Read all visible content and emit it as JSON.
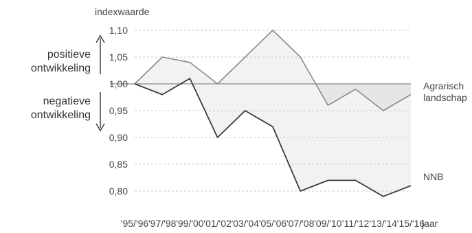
{
  "chart_data": {
    "type": "line",
    "title": "",
    "ylabel": "indexwaarde",
    "xlabel": "jaar",
    "ylim": [
      0.78,
      1.1
    ],
    "yticks": [
      "1,10",
      "1,05",
      "1,00",
      "0,95",
      "0,90",
      "0,85",
      "0,80"
    ],
    "ytick_values": [
      1.1,
      1.05,
      1.0,
      0.95,
      0.9,
      0.85,
      0.8
    ],
    "categories": [
      "'95/'96",
      "'97/'98",
      "'99/'00",
      "'01/'02",
      "'03/'04",
      "'05/'06",
      "'07/'08",
      "'09/'10",
      "'11/'12",
      "'13/'14",
      "'15/'16"
    ],
    "baseline": 1.0,
    "series": [
      {
        "name": "Agrarisch landschap",
        "label_lines": [
          "Agrarisch",
          "landschap"
        ],
        "values": [
          1.0,
          1.05,
          1.04,
          1.0,
          1.05,
          1.1,
          1.05,
          0.96,
          0.99,
          0.95,
          0.98
        ],
        "color": "#8a8a8a"
      },
      {
        "name": "NNB",
        "label_lines": [
          "NNB"
        ],
        "values": [
          1.0,
          0.98,
          1.01,
          0.9,
          0.95,
          0.92,
          0.8,
          0.82,
          0.82,
          0.79,
          0.81
        ],
        "color": "#3a3a3a"
      }
    ],
    "annotations": {
      "positive": [
        "positieve",
        "ontwikkeling"
      ],
      "negative": [
        "negatieve",
        "ontwikkeling"
      ]
    },
    "fill_colors": {
      "upper": "#f2f2f2",
      "lower_band": "#e6e6e6"
    },
    "grid": true
  }
}
